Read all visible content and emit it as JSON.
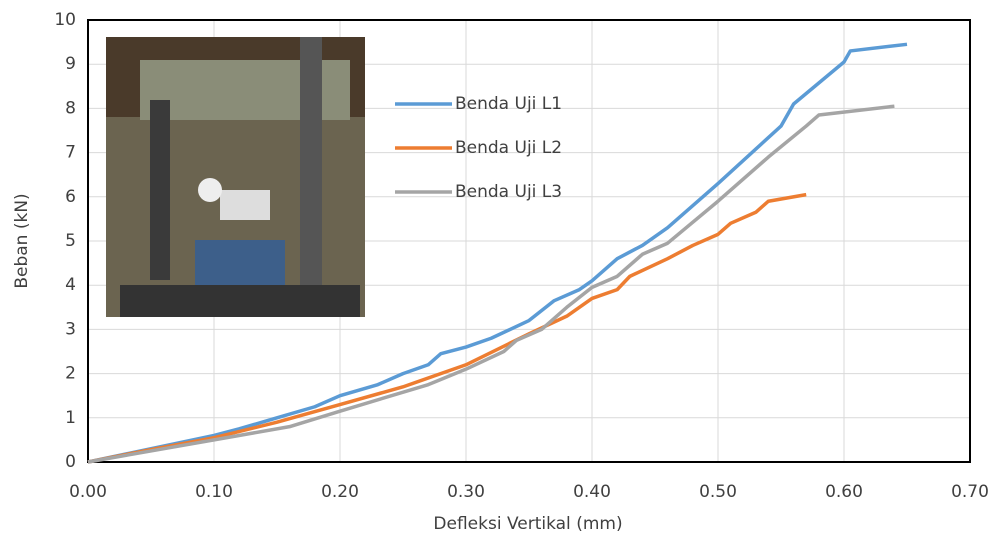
{
  "chart_data": {
    "type": "line",
    "xlabel": "Defleksi Vertikal (mm)",
    "ylabel": "Beban (kN)",
    "xlim": [
      0,
      0.7
    ],
    "ylim": [
      0,
      10
    ],
    "xticks": [
      {
        "value": 0,
        "label": "0.00"
      },
      {
        "value": 0.1,
        "label": "0.10"
      },
      {
        "value": 0.2,
        "label": "0.20"
      },
      {
        "value": 0.3,
        "label": "0.30"
      },
      {
        "value": 0.4,
        "label": "0.40"
      },
      {
        "value": 0.5,
        "label": "0.50"
      },
      {
        "value": 0.6,
        "label": "0.60"
      },
      {
        "value": 0.7,
        "label": "0.70"
      }
    ],
    "yticks": [
      0,
      1,
      2,
      3,
      4,
      5,
      6,
      7,
      8,
      9,
      10
    ],
    "grid": true,
    "series": [
      {
        "name": "Benda Uji L1",
        "color": "#5b9bd5",
        "x": [
          0,
          0.05,
          0.1,
          0.12,
          0.15,
          0.18,
          0.2,
          0.23,
          0.25,
          0.27,
          0.28,
          0.3,
          0.32,
          0.35,
          0.37,
          0.39,
          0.4,
          0.42,
          0.44,
          0.46,
          0.5,
          0.55,
          0.56,
          0.6,
          0.605,
          0.65
        ],
        "values": [
          0,
          0.3,
          0.6,
          0.75,
          1.0,
          1.25,
          1.5,
          1.75,
          2.0,
          2.2,
          2.45,
          2.6,
          2.8,
          3.2,
          3.65,
          3.9,
          4.1,
          4.6,
          4.9,
          5.3,
          6.3,
          7.6,
          8.1,
          9.05,
          9.3,
          9.45
        ]
      },
      {
        "name": "Benda Uji L2",
        "color": "#ed7d31",
        "x": [
          0,
          0.05,
          0.1,
          0.15,
          0.2,
          0.25,
          0.3,
          0.35,
          0.38,
          0.39,
          0.4,
          0.42,
          0.43,
          0.46,
          0.47,
          0.48,
          0.5,
          0.51,
          0.53,
          0.54,
          0.57
        ],
        "values": [
          0,
          0.28,
          0.55,
          0.9,
          1.3,
          1.7,
          2.2,
          2.9,
          3.3,
          3.5,
          3.7,
          3.9,
          4.2,
          4.6,
          4.75,
          4.9,
          5.15,
          5.4,
          5.65,
          5.9,
          6.05
        ]
      },
      {
        "name": "Benda Uji L3",
        "color": "#a5a5a5",
        "x": [
          0,
          0.05,
          0.1,
          0.16,
          0.2,
          0.27,
          0.3,
          0.33,
          0.34,
          0.36,
          0.38,
          0.4,
          0.42,
          0.44,
          0.46,
          0.5,
          0.54,
          0.57,
          0.58,
          0.64
        ],
        "values": [
          0,
          0.25,
          0.5,
          0.8,
          1.15,
          1.75,
          2.1,
          2.5,
          2.75,
          3.0,
          3.5,
          3.95,
          4.2,
          4.7,
          4.95,
          5.9,
          6.9,
          7.6,
          7.85,
          8.05
        ]
      }
    ]
  }
}
